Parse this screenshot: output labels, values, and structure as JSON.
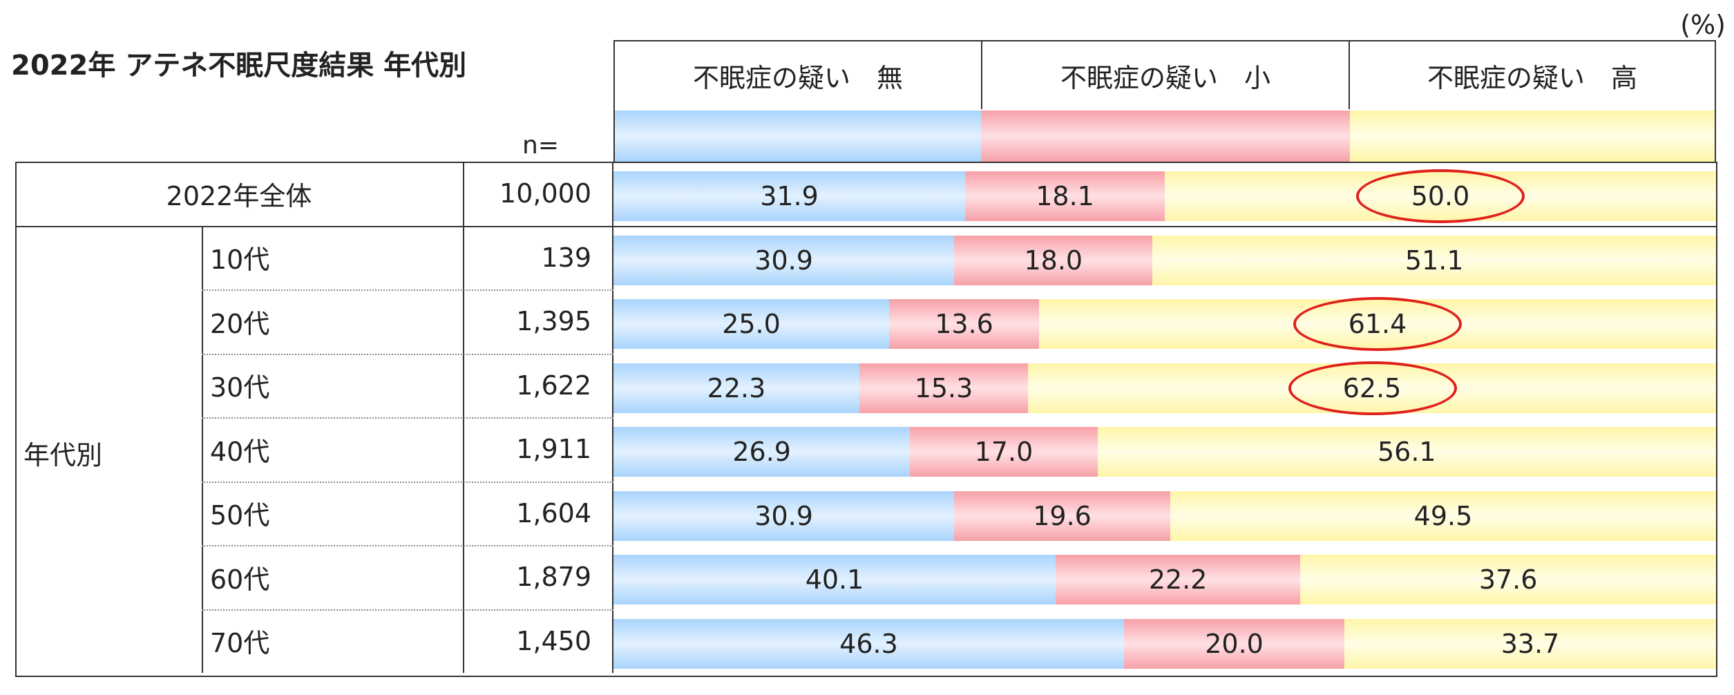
{
  "title": "2022年 アテネ不眠尺度結果 年代別",
  "unit": "(%)",
  "n_label": "n=",
  "legend": [
    {
      "label": "不眠症の疑い　無",
      "color": "#a9d4fb"
    },
    {
      "label": "不眠症の疑い　小",
      "color": "#f7a0a8"
    },
    {
      "label": "不眠症の疑い　高",
      "color": "#fff6a8"
    }
  ],
  "group_label": "年代別",
  "chart_data": {
    "type": "bar",
    "orientation": "horizontal",
    "stacked": true,
    "normalized": true,
    "xlim": [
      0,
      100
    ],
    "categories": [
      "2022年全体",
      "10代",
      "20代",
      "30代",
      "40代",
      "50代",
      "60代",
      "70代"
    ],
    "n": [
      "10,000",
      "139",
      "1,395",
      "1,622",
      "1,911",
      "1,604",
      "1,879",
      "1,450"
    ],
    "series": [
      {
        "name": "不眠症の疑い　無",
        "values": [
          31.9,
          30.9,
          25.0,
          22.3,
          26.9,
          30.9,
          40.1,
          46.3
        ]
      },
      {
        "name": "不眠症の疑い　小",
        "values": [
          18.1,
          18.0,
          13.6,
          15.3,
          17.0,
          19.6,
          22.2,
          20.0
        ]
      },
      {
        "name": "不眠症の疑い　高",
        "values": [
          50.0,
          51.1,
          61.4,
          62.5,
          56.1,
          49.5,
          37.6,
          33.7
        ]
      }
    ],
    "value_labels": [
      [
        "31.9",
        "18.1",
        "50.0"
      ],
      [
        "30.9",
        "18.0",
        "51.1"
      ],
      [
        "25.0",
        "13.6",
        "61.4"
      ],
      [
        "22.3",
        "15.3",
        "62.5"
      ],
      [
        "26.9",
        "17.0",
        "56.1"
      ],
      [
        "30.9",
        "19.6",
        "49.5"
      ],
      [
        "40.1",
        "22.2",
        "37.6"
      ],
      [
        "46.3",
        "20.0",
        "33.7"
      ]
    ],
    "highlighted": [
      {
        "category": "2022年全体",
        "series": "不眠症の疑い　高"
      },
      {
        "category": "20代",
        "series": "不眠症の疑い　高"
      },
      {
        "category": "30代",
        "series": "不眠症の疑い　高"
      }
    ]
  }
}
